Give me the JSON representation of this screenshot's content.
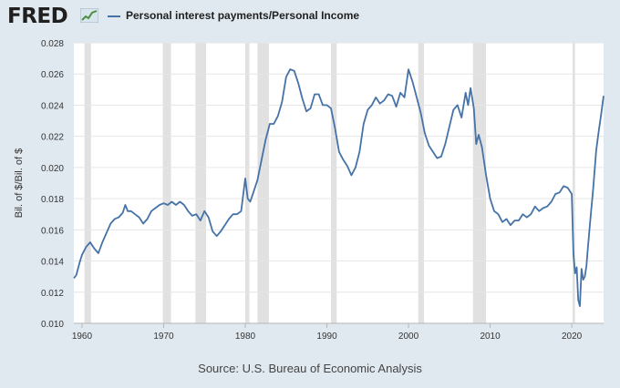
{
  "header": {
    "logo_text": "FRED",
    "legend_label": "Personal interest payments/Personal Income"
  },
  "source_text": "Source: U.S. Bureau of Economic Analysis",
  "chart_data": {
    "type": "line",
    "title": "",
    "xlabel": "",
    "ylabel": "Bil. of $/Bil. of $",
    "xlim": [
      1959,
      2023.9
    ],
    "ylim": [
      0.01,
      0.028
    ],
    "x_ticks": [
      1960,
      1970,
      1980,
      1990,
      2000,
      2010,
      2020
    ],
    "x_tick_labels": [
      "1960",
      "1970",
      "1980",
      "1990",
      "2000",
      "2010",
      "2020"
    ],
    "y_ticks": [
      0.01,
      0.012,
      0.014,
      0.016,
      0.018,
      0.02,
      0.022,
      0.024,
      0.026,
      0.028
    ],
    "y_tick_labels": [
      "0.010",
      "0.012",
      "0.014",
      "0.016",
      "0.018",
      "0.020",
      "0.022",
      "0.024",
      "0.026",
      "0.028"
    ],
    "grid": "horizontal",
    "line_color": "#4572a7",
    "recession_color": "#e1e1e1",
    "recessions": [
      [
        1960.3,
        1961.1
      ],
      [
        1969.9,
        1970.9
      ],
      [
        1973.9,
        1975.2
      ],
      [
        1980.0,
        1980.5
      ],
      [
        1981.5,
        1982.9
      ],
      [
        1990.5,
        1991.2
      ],
      [
        2001.2,
        2001.9
      ],
      [
        2007.9,
        2009.5
      ],
      [
        2020.1,
        2020.4
      ]
    ],
    "series": [
      {
        "name": "Personal interest payments/Personal Income",
        "x": [
          1959.0,
          1959.3,
          1959.7,
          1960.0,
          1960.5,
          1961.0,
          1961.5,
          1962.0,
          1962.5,
          1963.0,
          1963.5,
          1964.0,
          1964.5,
          1965.0,
          1965.3,
          1965.6,
          1966.0,
          1966.5,
          1967.0,
          1967.5,
          1968.0,
          1968.5,
          1969.0,
          1969.5,
          1970.0,
          1970.5,
          1971.0,
          1971.5,
          1972.0,
          1972.5,
          1973.0,
          1973.5,
          1974.0,
          1974.5,
          1975.0,
          1975.5,
          1976.0,
          1976.5,
          1977.0,
          1977.5,
          1978.0,
          1978.5,
          1979.0,
          1979.5,
          1980.0,
          1980.3,
          1980.6,
          1981.0,
          1981.5,
          1982.0,
          1982.5,
          1983.0,
          1983.5,
          1984.0,
          1984.5,
          1985.0,
          1985.5,
          1986.0,
          1986.5,
          1987.0,
          1987.5,
          1988.0,
          1988.5,
          1989.0,
          1989.5,
          1990.0,
          1990.5,
          1991.0,
          1991.5,
          1992.0,
          1992.5,
          1993.0,
          1993.5,
          1994.0,
          1994.5,
          1995.0,
          1995.5,
          1996.0,
          1996.5,
          1997.0,
          1997.5,
          1998.0,
          1998.5,
          1999.0,
          1999.5,
          2000.0,
          2000.5,
          2001.0,
          2001.5,
          2002.0,
          2002.5,
          2003.0,
          2003.5,
          2004.0,
          2004.5,
          2005.0,
          2005.5,
          2006.0,
          2006.5,
          2007.0,
          2007.3,
          2007.6,
          2008.0,
          2008.3,
          2008.6,
          2009.0,
          2009.5,
          2010.0,
          2010.5,
          2011.0,
          2011.5,
          2012.0,
          2012.5,
          2013.0,
          2013.5,
          2014.0,
          2014.5,
          2015.0,
          2015.5,
          2016.0,
          2016.5,
          2017.0,
          2017.5,
          2018.0,
          2018.5,
          2019.0,
          2019.5,
          2020.0,
          2020.2,
          2020.4,
          2020.6,
          2020.8,
          2021.0,
          2021.2,
          2021.4,
          2021.6,
          2021.8,
          2022.0,
          2022.3,
          2022.6,
          2023.0,
          2023.3,
          2023.6,
          2023.9
        ],
        "values": [
          0.0129,
          0.0131,
          0.0139,
          0.0144,
          0.0149,
          0.0152,
          0.0148,
          0.0145,
          0.0152,
          0.0158,
          0.0164,
          0.0167,
          0.0168,
          0.0171,
          0.0176,
          0.0172,
          0.0172,
          0.017,
          0.0168,
          0.0164,
          0.0167,
          0.0172,
          0.0174,
          0.0176,
          0.0177,
          0.0176,
          0.0178,
          0.0176,
          0.0178,
          0.0176,
          0.0172,
          0.0169,
          0.017,
          0.0166,
          0.0172,
          0.0168,
          0.0159,
          0.0156,
          0.0159,
          0.0163,
          0.0167,
          0.017,
          0.017,
          0.0172,
          0.0193,
          0.018,
          0.0178,
          0.0184,
          0.0192,
          0.0205,
          0.0218,
          0.0228,
          0.0228,
          0.0233,
          0.0242,
          0.0258,
          0.0263,
          0.0262,
          0.0254,
          0.0244,
          0.0236,
          0.0238,
          0.0247,
          0.0247,
          0.024,
          0.024,
          0.0238,
          0.0225,
          0.021,
          0.0205,
          0.0201,
          0.0195,
          0.02,
          0.021,
          0.0228,
          0.0237,
          0.024,
          0.0245,
          0.0241,
          0.0243,
          0.0247,
          0.0246,
          0.0239,
          0.0248,
          0.0245,
          0.0263,
          0.0255,
          0.0245,
          0.0235,
          0.0222,
          0.0214,
          0.021,
          0.0206,
          0.0207,
          0.0215,
          0.0226,
          0.0237,
          0.024,
          0.0232,
          0.0248,
          0.024,
          0.0251,
          0.0238,
          0.0215,
          0.0221,
          0.0213,
          0.0195,
          0.018,
          0.0172,
          0.017,
          0.0165,
          0.0167,
          0.0163,
          0.0166,
          0.0166,
          0.017,
          0.0168,
          0.017,
          0.0175,
          0.0172,
          0.0174,
          0.0175,
          0.0178,
          0.0183,
          0.0184,
          0.0188,
          0.0187,
          0.0183,
          0.0145,
          0.0132,
          0.0136,
          0.0115,
          0.0111,
          0.0135,
          0.0128,
          0.013,
          0.0137,
          0.015,
          0.0168,
          0.0185,
          0.0211,
          0.0223,
          0.0234,
          0.0246
        ]
      }
    ]
  }
}
